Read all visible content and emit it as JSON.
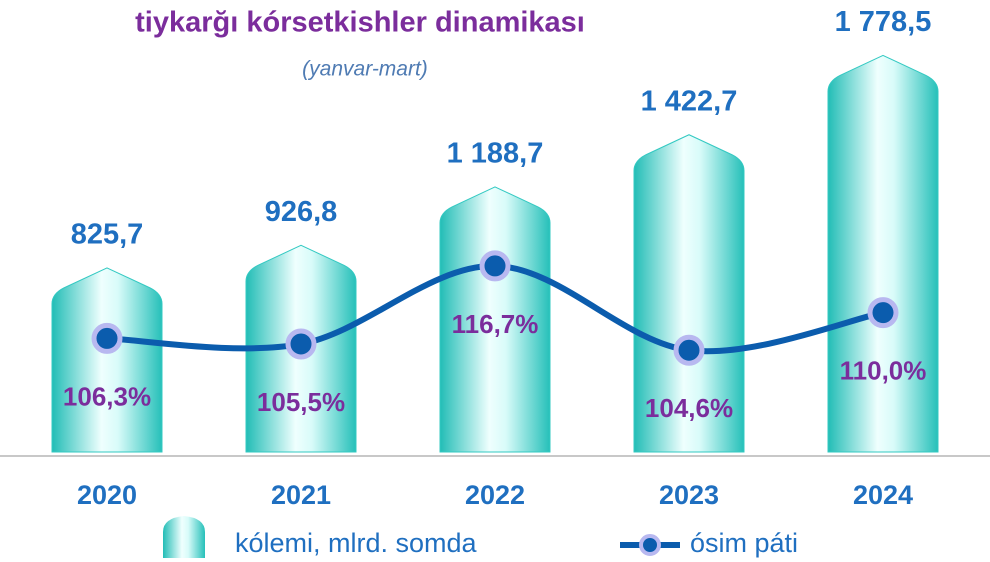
{
  "chart_data": {
    "type": "bar",
    "title": "tiykarğı kórsetkishler dinamikası",
    "subtitle": "(yanvar-mart)",
    "categories": [
      "2020",
      "2021",
      "2022",
      "2023",
      "2024"
    ],
    "series": [
      {
        "name": "kólemi, mlrd. somda",
        "type": "bar",
        "color": "#33c9c2",
        "values": [
          825.7,
          926.8,
          1188.7,
          1422.7,
          1778.5
        ],
        "value_labels": [
          "825,7",
          "926,8",
          "1 188,7",
          "1 422,7",
          "1 778,5"
        ]
      },
      {
        "name": "ósim páti",
        "type": "line",
        "axis": "y2",
        "color": "#0b5cad",
        "values": [
          106.3,
          105.5,
          116.7,
          104.6,
          110.0
        ],
        "value_labels": [
          "106,3%",
          "105,5%",
          "116,7%",
          "104,6%",
          "110,0%"
        ]
      }
    ],
    "ylim": [
      0,
      2000
    ],
    "y2lim": [
      90,
      154
    ]
  }
}
